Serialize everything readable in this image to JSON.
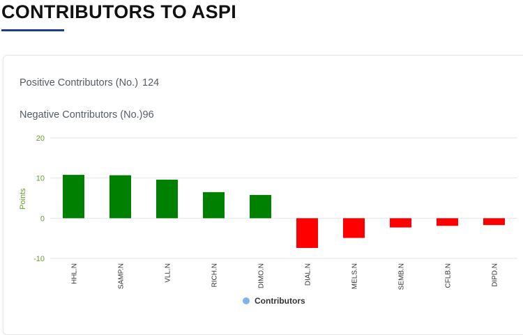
{
  "header": {
    "title": "CONTRIBUTORS TO ASPI"
  },
  "stats": {
    "positive_label": "Positive Contributors (No.)",
    "positive_value": "124",
    "negative_label": "Negative Contributors (No.)",
    "negative_value": "96"
  },
  "colors": {
    "positive": "#008000",
    "negative": "#ff0000",
    "axis_label": "#6a9a2a",
    "legend_marker": "#7cb5ec",
    "title_underline": "#1f3b8c"
  },
  "chart_data": {
    "type": "bar",
    "title": "",
    "xlabel": "",
    "ylabel": "Points",
    "ylim": [
      -10,
      20
    ],
    "yticks": [
      -10,
      0,
      10,
      20
    ],
    "grid": true,
    "legend": {
      "position": "bottom-center",
      "entries": [
        "Contributors"
      ]
    },
    "categories": [
      "HHL.N",
      "SAMP.N",
      "VLL.N",
      "RICH.N",
      "DIMO.N",
      "DIAL.N",
      "MELS.N",
      "SEMB.N",
      "CFLB.N",
      "DIPD.N"
    ],
    "series": [
      {
        "name": "Contributors",
        "values": [
          10.8,
          10.7,
          9.6,
          6.5,
          5.8,
          -7.4,
          -4.9,
          -2.3,
          -1.9,
          -1.7
        ]
      }
    ]
  }
}
